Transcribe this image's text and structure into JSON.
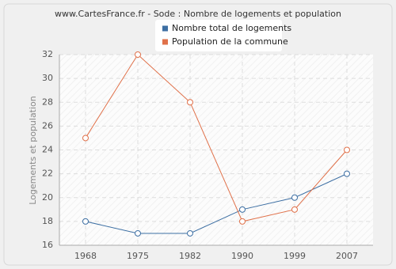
{
  "chart_data": {
    "type": "line",
    "title": "www.CartesFrance.fr - Sode : Nombre de logements et population",
    "y_label": "Logements et population",
    "categories": [
      "1968",
      "1975",
      "1982",
      "1990",
      "1999",
      "2007"
    ],
    "series": [
      {
        "name": "Nombre total de logements",
        "color": "#3d6fa3",
        "values": [
          18,
          17,
          17,
          19,
          20,
          22
        ]
      },
      {
        "name": "Population de la commune",
        "color": "#e0714a",
        "values": [
          25,
          32,
          28,
          18,
          19,
          24
        ]
      }
    ],
    "ylim": [
      16,
      32
    ],
    "yticks": [
      16,
      18,
      20,
      22,
      24,
      26,
      28,
      30,
      32
    ],
    "grid": true
  }
}
